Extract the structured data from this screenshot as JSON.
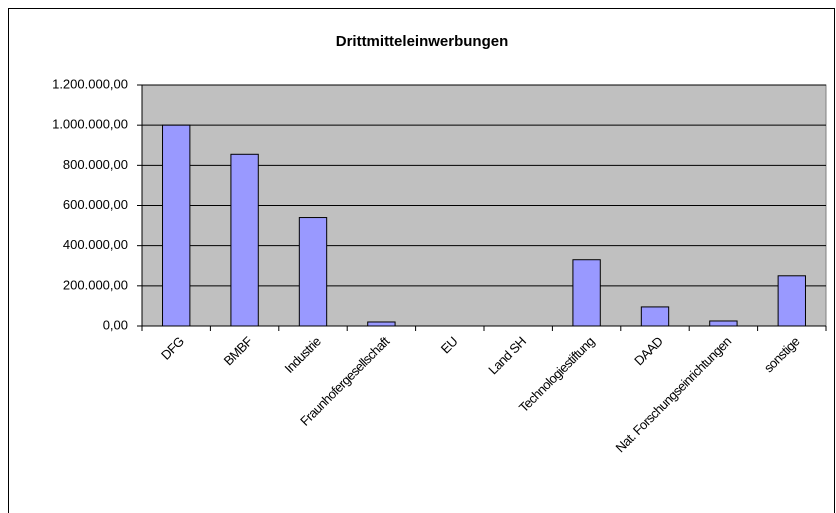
{
  "chart_data": {
    "type": "bar",
    "title": "Drittmitteleinwerbungen",
    "categories": [
      "DFG",
      "BMBF",
      "Industrie",
      "Fraunhofergesellschaft",
      "EU",
      "Land SH",
      "Technologiestiftung",
      "DAAD",
      "Nat. Forschungseinrichtungen",
      "sonstige"
    ],
    "values": [
      1000000,
      855000,
      540000,
      20000,
      0,
      0,
      330000,
      95000,
      25000,
      250000
    ],
    "color": "#9999ff",
    "ylim": [
      0,
      1200000
    ],
    "yticks": [
      {
        "value": 0,
        "label": "0,00"
      },
      {
        "value": 200000,
        "label": "200.000,00"
      },
      {
        "value": 400000,
        "label": "400.000,00"
      },
      {
        "value": 600000,
        "label": "600.000,00"
      },
      {
        "value": 800000,
        "label": "800.000,00"
      },
      {
        "value": 1000000,
        "label": "1.000.000,00"
      },
      {
        "value": 1200000,
        "label": "1.200.000,00"
      }
    ],
    "grid": true
  }
}
